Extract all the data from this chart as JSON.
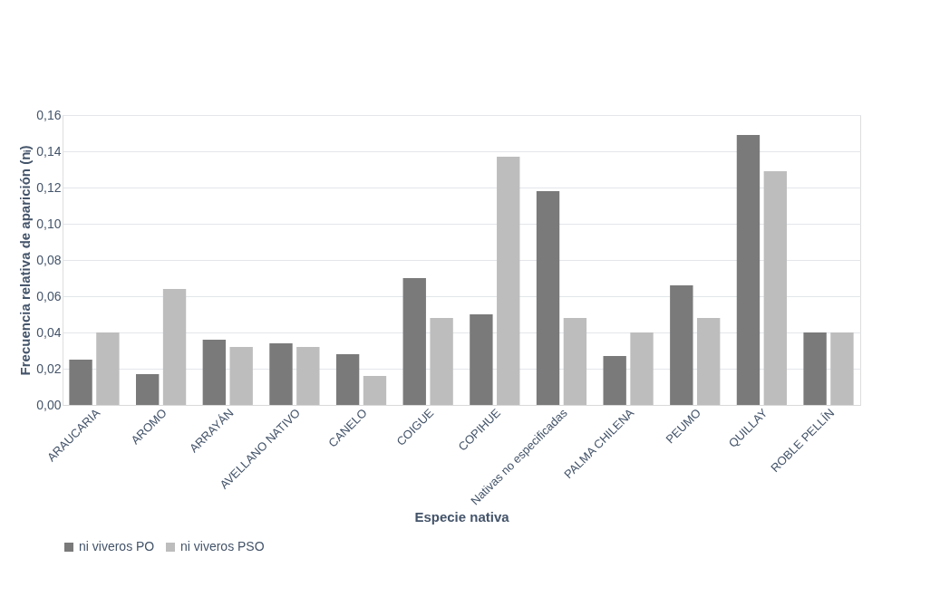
{
  "chart_data": {
    "type": "bar",
    "xlabel": "Especie nativa",
    "ylabel": "Frecuencia relativa de aparición (nᵢ)",
    "categories": [
      "ARAUCARIA",
      "AROMO",
      "ARRAYÁN",
      "AVELLANO NATIVO",
      "CANELO",
      "COIGUE",
      "COPIHUE",
      "Nativas no especificadas",
      "PALMA CHILENA",
      "PEUMO",
      "QUILLAY",
      "ROBLE PELLÍN"
    ],
    "series": [
      {
        "name": "ni viveros PO",
        "color": "#7a7a7a",
        "values": [
          0.025,
          0.017,
          0.036,
          0.034,
          0.028,
          0.07,
          0.05,
          0.118,
          0.027,
          0.066,
          0.149,
          0.04
        ]
      },
      {
        "name": "ni viveros PSO",
        "color": "#bdbdbd",
        "values": [
          0.04,
          0.064,
          0.032,
          0.032,
          0.016,
          0.048,
          0.137,
          0.048,
          0.04,
          0.048,
          0.129,
          0.04
        ]
      }
    ],
    "ylim": [
      0,
      0.16
    ],
    "yticks": [
      {
        "value": 0,
        "label": "0,00"
      },
      {
        "value": 0.02,
        "label": "0,02"
      },
      {
        "value": 0.04,
        "label": "0,04"
      },
      {
        "value": 0.06,
        "label": "0,06"
      },
      {
        "value": 0.08,
        "label": "0,08"
      },
      {
        "value": 0.1,
        "label": "0,10"
      },
      {
        "value": 0.12,
        "label": "0,12"
      },
      {
        "value": 0.14,
        "label": "0,14"
      },
      {
        "value": 0.16,
        "label": "0,16"
      }
    ],
    "grid": "y",
    "legend": "bottom"
  }
}
